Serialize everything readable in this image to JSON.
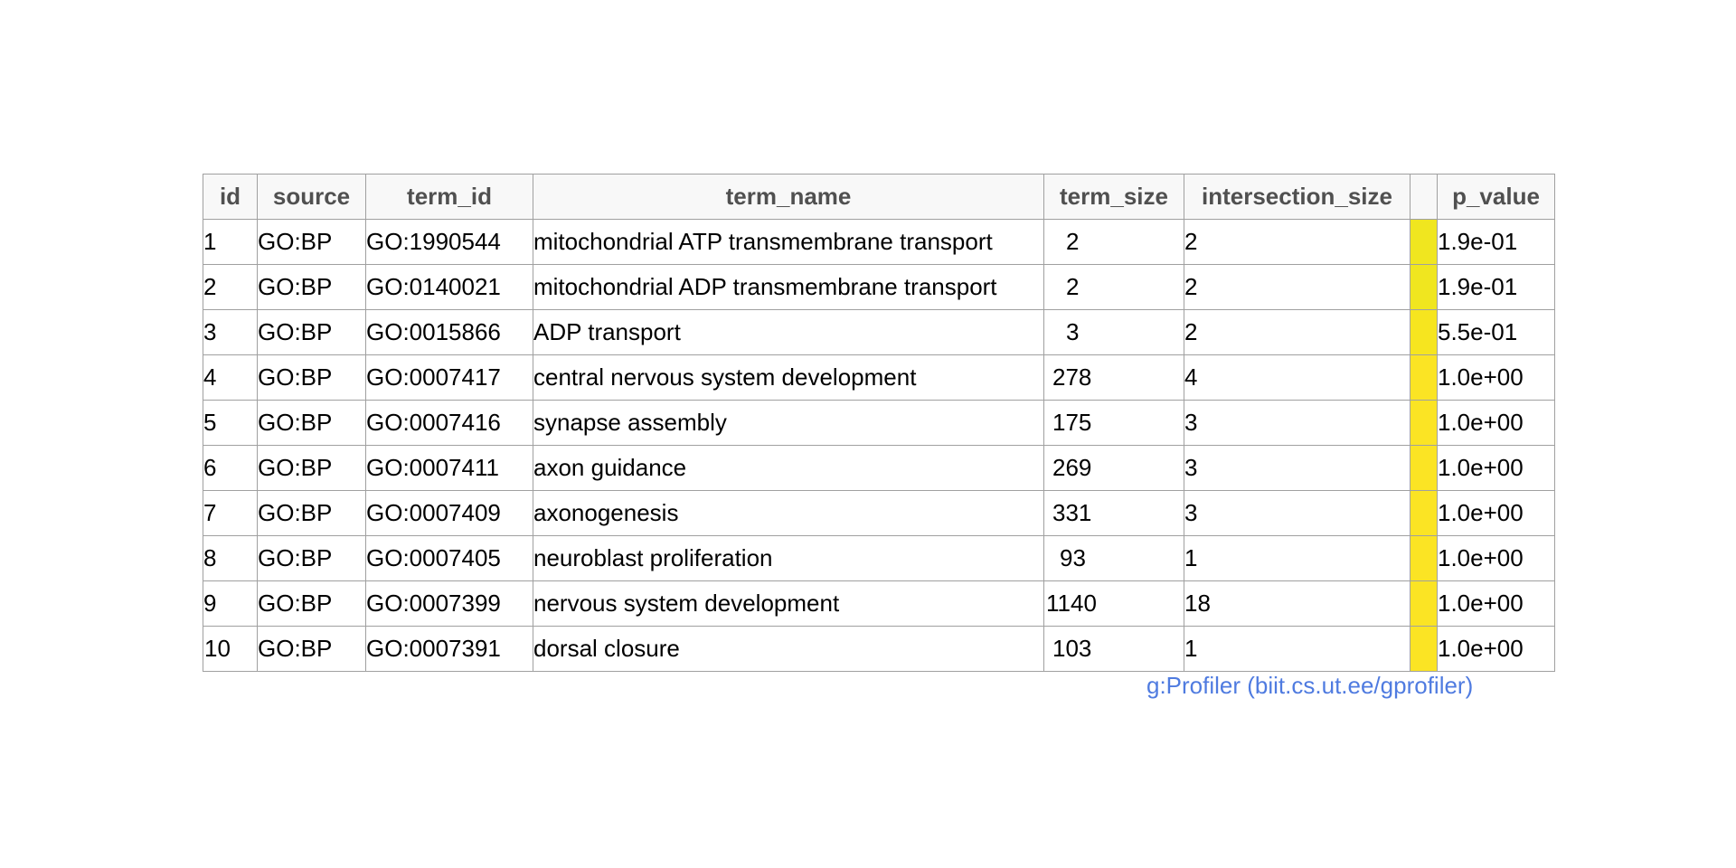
{
  "chart_data": {
    "type": "table",
    "columns": [
      "id",
      "source",
      "term_id",
      "term_name",
      "term_size",
      "intersection_size",
      "",
      "p_value"
    ],
    "rows": [
      {
        "id": "1",
        "source": "GO:BP",
        "term_id": "GO:1990544",
        "term_name": "mitochondrial ATP transmembrane transport",
        "term_size": "2",
        "intersection_size": "2",
        "p_value": "1.9e-01",
        "bar_color": "#f0e61f"
      },
      {
        "id": "2",
        "source": "GO:BP",
        "term_id": "GO:0140021",
        "term_name": "mitochondrial ADP transmembrane transport",
        "term_size": "2",
        "intersection_size": "2",
        "p_value": "1.9e-01",
        "bar_color": "#f0e61f"
      },
      {
        "id": "3",
        "source": "GO:BP",
        "term_id": "GO:0015866",
        "term_name": "ADP transport",
        "term_size": "3",
        "intersection_size": "2",
        "p_value": "5.5e-01",
        "bar_color": "#f6e51f"
      },
      {
        "id": "4",
        "source": "GO:BP",
        "term_id": "GO:0007417",
        "term_name": "central nervous system development",
        "term_size": "278",
        "intersection_size": "4",
        "p_value": "1.0e+00",
        "bar_color": "#fbe424"
      },
      {
        "id": "5",
        "source": "GO:BP",
        "term_id": "GO:0007416",
        "term_name": "synapse assembly",
        "term_size": "175",
        "intersection_size": "3",
        "p_value": "1.0e+00",
        "bar_color": "#fbe424"
      },
      {
        "id": "6",
        "source": "GO:BP",
        "term_id": "GO:0007411",
        "term_name": "axon guidance",
        "term_size": "269",
        "intersection_size": "3",
        "p_value": "1.0e+00",
        "bar_color": "#fbe424"
      },
      {
        "id": "7",
        "source": "GO:BP",
        "term_id": "GO:0007409",
        "term_name": "axonogenesis",
        "term_size": "331",
        "intersection_size": "3",
        "p_value": "1.0e+00",
        "bar_color": "#fbe424"
      },
      {
        "id": "8",
        "source": "GO:BP",
        "term_id": "GO:0007405",
        "term_name": "neuroblast proliferation",
        "term_size": "93",
        "intersection_size": "1",
        "p_value": "1.0e+00",
        "bar_color": "#fbe424"
      },
      {
        "id": "9",
        "source": "GO:BP",
        "term_id": "GO:0007399",
        "term_name": "nervous system development",
        "term_size": "1140",
        "intersection_size": "18",
        "p_value": "1.0e+00",
        "bar_color": "#fbe424"
      },
      {
        "id": "10",
        "source": "GO:BP",
        "term_id": "GO:0007391",
        "term_name": "dorsal closure",
        "term_size": "103",
        "intersection_size": "1",
        "p_value": "1.0e+00",
        "bar_color": "#fbe424"
      }
    ]
  },
  "footer": {
    "credit": "g:Profiler (biit.cs.ut.ee/gprofiler)",
    "credit_color": "#4f7be0"
  }
}
